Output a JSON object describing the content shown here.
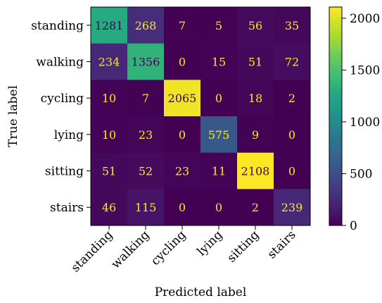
{
  "chart_data": {
    "type": "heatmap",
    "xlabel": "Predicted label",
    "ylabel": "True label",
    "categories": [
      "standing",
      "walking",
      "cycling",
      "lying",
      "sitting",
      "stairs"
    ],
    "matrix": [
      [
        1281,
        268,
        7,
        5,
        56,
        35
      ],
      [
        234,
        1356,
        0,
        15,
        51,
        72
      ],
      [
        10,
        7,
        2065,
        0,
        18,
        2
      ],
      [
        10,
        23,
        0,
        575,
        9,
        0
      ],
      [
        51,
        52,
        23,
        11,
        2108,
        0
      ],
      [
        46,
        115,
        0,
        0,
        2,
        239
      ]
    ],
    "colormap": "viridis",
    "vmin": 0,
    "vmax": 2108,
    "colorbar_ticks": [
      0,
      500,
      1000,
      1500,
      2000
    ],
    "colors": {
      "low_text": "#fde725",
      "high_text": "#440154"
    }
  }
}
